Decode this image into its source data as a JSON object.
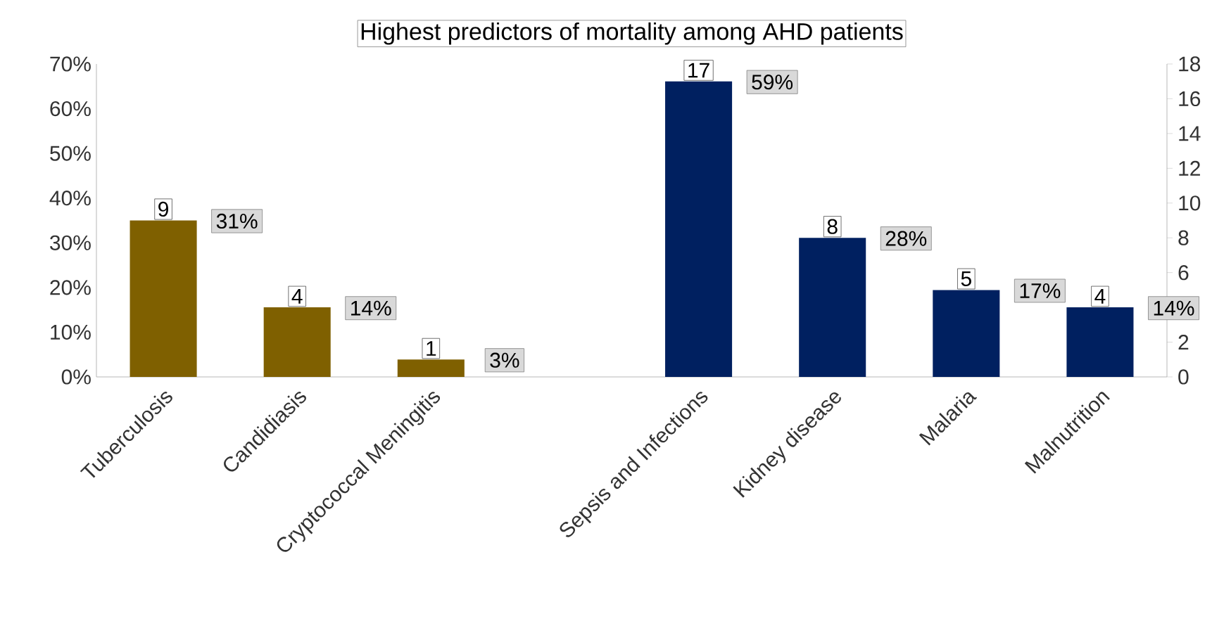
{
  "chart_data": {
    "type": "bar",
    "title": "Highest predictors of mortality among AHD patients",
    "categories": [
      "Tuberculosis",
      "Candidiasis",
      "Cryptococcal Meningitis",
      null,
      "Sepsis and Infections",
      "Kidney disease",
      "Malaria",
      "Malnutrition"
    ],
    "series": [
      {
        "axis": "y2",
        "values": [
          9,
          4,
          1,
          null,
          17,
          8,
          5,
          4
        ],
        "colors": [
          "#7f6000",
          "#7f6000",
          "#7f6000",
          null,
          "#002060",
          "#002060",
          "#002060",
          "#002060"
        ]
      }
    ],
    "data_labels": true,
    "annotations": [
      "31%",
      "14%",
      "3%",
      "59%",
      "28%",
      "17%",
      "14%"
    ],
    "ylim": [
      0,
      70
    ],
    "yticks": [
      {
        "value": 0,
        "label": "0%"
      },
      {
        "value": 10,
        "label": "10%"
      },
      {
        "value": 20,
        "label": "20%"
      },
      {
        "value": 30,
        "label": "30%"
      },
      {
        "value": 40,
        "label": "40%"
      },
      {
        "value": 50,
        "label": "50%"
      },
      {
        "value": 60,
        "label": "60%"
      },
      {
        "value": 70,
        "label": "70%"
      }
    ],
    "y2lim": [
      0,
      18
    ],
    "y2ticks": [
      0,
      2,
      6,
      8,
      10,
      12,
      14,
      16,
      18
    ]
  }
}
